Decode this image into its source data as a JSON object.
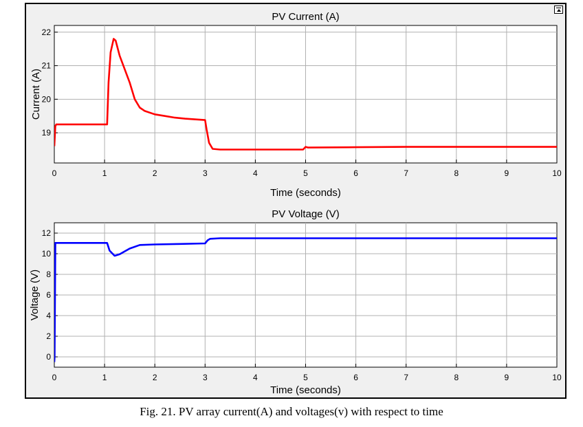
{
  "caption": "Fig. 21. PV array current(A) and voltages(v) with respect to time",
  "toolbar": {
    "restore_icon": "window-restore-icon"
  },
  "colors": {
    "current_line": "#ff0000",
    "voltage_line": "#0000ff",
    "axes_bg": "#ffffff",
    "frame_bg": "#f0f0f0",
    "grid": "#b0b0b0"
  },
  "chart_data": [
    {
      "type": "line",
      "title": "PV Current (A)",
      "xlabel": "Time (seconds)",
      "ylabel": "Current (A)",
      "xlim": [
        0,
        10
      ],
      "ylim": [
        18.1,
        22.2
      ],
      "xticks": [
        0,
        1,
        2,
        3,
        4,
        5,
        6,
        7,
        8,
        9,
        10
      ],
      "yticks": [
        19,
        20,
        21,
        22
      ],
      "grid": true,
      "legend": "none",
      "series": [
        {
          "color": "#ff0000",
          "x": [
            0,
            0.02,
            0.04,
            1.05,
            1.08,
            1.12,
            1.18,
            1.22,
            1.3,
            1.4,
            1.5,
            1.6,
            1.7,
            1.8,
            2.0,
            2.2,
            2.4,
            2.6,
            2.8,
            3.0,
            3.03,
            3.08,
            3.15,
            3.3,
            3.5,
            4.0,
            4.5,
            4.95,
            5.0,
            5.05,
            6.0,
            7.0,
            8.0,
            9.0,
            10.0
          ],
          "y": [
            18.6,
            19.2,
            19.25,
            19.25,
            20.5,
            21.4,
            21.8,
            21.75,
            21.3,
            20.9,
            20.5,
            20.0,
            19.75,
            19.65,
            19.55,
            19.5,
            19.45,
            19.42,
            19.4,
            19.38,
            19.1,
            18.7,
            18.52,
            18.5,
            18.5,
            18.5,
            18.5,
            18.5,
            18.58,
            18.56,
            18.57,
            18.58,
            18.58,
            18.58,
            18.58
          ]
        }
      ]
    },
    {
      "type": "line",
      "title": "PV Voltage (V)",
      "xlabel": "Time (seconds)",
      "ylabel": "Voltage (V)",
      "xlim": [
        0,
        10
      ],
      "ylim": [
        -1,
        13
      ],
      "xticks": [
        0,
        1,
        2,
        3,
        4,
        5,
        6,
        7,
        8,
        9,
        10
      ],
      "yticks": [
        0,
        2,
        4,
        6,
        8,
        10,
        12
      ],
      "grid": true,
      "legend": "none",
      "series": [
        {
          "color": "#0000ff",
          "x": [
            0,
            0.005,
            0.02,
            1.05,
            1.1,
            1.2,
            1.3,
            1.5,
            1.7,
            2.0,
            2.5,
            3.0,
            3.05,
            3.1,
            3.3,
            4.0,
            5.0,
            6.0,
            7.0,
            8.0,
            9.0,
            10.0
          ],
          "y": [
            -0.5,
            0,
            11.05,
            11.05,
            10.3,
            9.8,
            9.95,
            10.5,
            10.85,
            10.9,
            10.95,
            11.0,
            11.3,
            11.45,
            11.5,
            11.5,
            11.5,
            11.5,
            11.5,
            11.5,
            11.5,
            11.5
          ]
        }
      ]
    }
  ]
}
